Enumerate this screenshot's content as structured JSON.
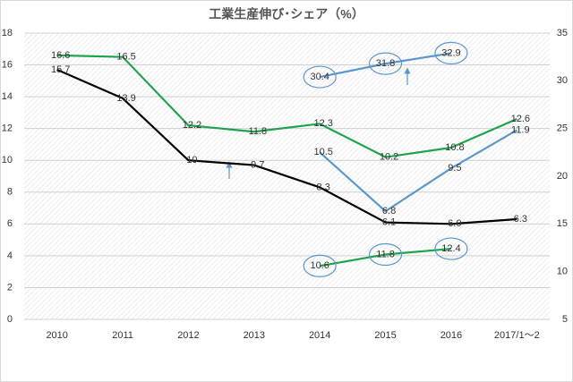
{
  "chart_data": {
    "type": "line",
    "title": "工業生産伸び･シェア（%）",
    "categories": [
      "2010",
      "2011",
      "2012",
      "2013",
      "2014",
      "2015",
      "2016",
      "2017/1～2"
    ],
    "ylim": [
      0,
      18
    ],
    "yticks": [
      0,
      2,
      4,
      6,
      8,
      10,
      12,
      14,
      16,
      18
    ],
    "y2lim": [
      5,
      35
    ],
    "y2ticks": [
      5,
      10,
      15,
      20,
      25,
      30,
      35
    ],
    "grid": true,
    "series": [
      {
        "color": "#000000",
        "values": [
          15.7,
          13.9,
          10,
          9.7,
          8.3,
          6.1,
          6.0,
          6.3
        ],
        "value_labels": [
          "15.7",
          "13.9",
          "10",
          "9.7",
          "8.3",
          "6.1",
          "6.0",
          "6.3"
        ]
      },
      {
        "color": "#1ea34d",
        "values": [
          16.6,
          16.5,
          12.2,
          11.8,
          12.3,
          10.2,
          10.8,
          12.6
        ]
      },
      {
        "color": "#5b97cc",
        "values": [
          null,
          null,
          null,
          null,
          10.5,
          6.8,
          9.5,
          11.9
        ]
      },
      {
        "color": "#5b97cc",
        "axis": "y2",
        "values": [
          null,
          null,
          null,
          null,
          30.4,
          31.8,
          32.9,
          null
        ]
      },
      {
        "color": "#1ea34d",
        "axis": "y2",
        "values": [
          null,
          null,
          null,
          null,
          10.6,
          11.8,
          12.4,
          null
        ]
      }
    ]
  }
}
